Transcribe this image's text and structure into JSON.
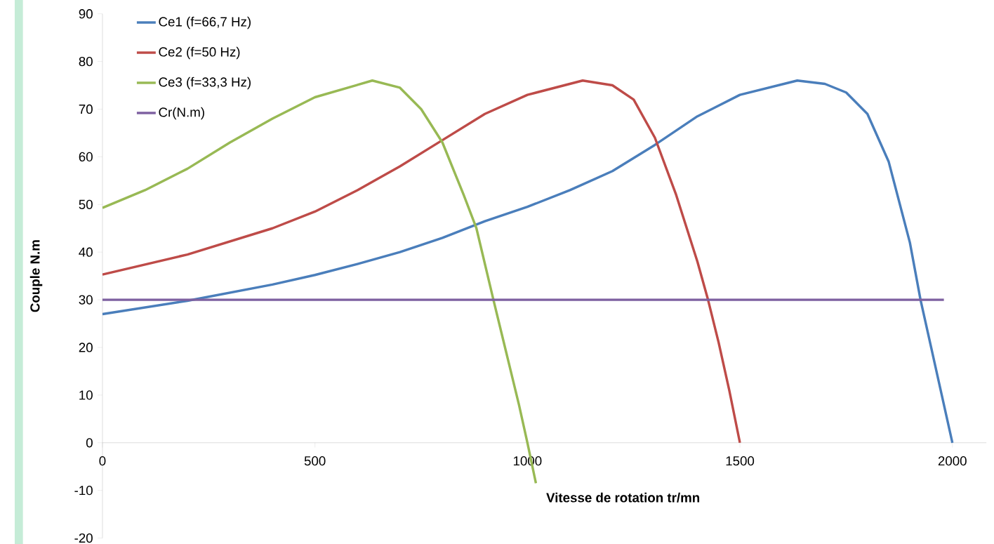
{
  "chart_data": {
    "type": "line",
    "xlabel": "Vitesse de rotation  tr/mn",
    "ylabel": "Couple N.m",
    "xlim": [
      0,
      2080
    ],
    "ylim": [
      -20,
      90
    ],
    "xticks": [
      0,
      500,
      1000,
      1500,
      2000
    ],
    "yticks": [
      -20,
      -10,
      0,
      10,
      20,
      30,
      40,
      50,
      60,
      70,
      80,
      90
    ],
    "grid": false,
    "legend": "top left",
    "marker": "none",
    "line_style": "solid",
    "series": [
      {
        "name": "Ce1 (f=66,7 Hz)",
        "color": "#4a7ebb",
        "x": [
          0,
          200,
          300,
          400,
          500,
          600,
          700,
          800,
          900,
          1000,
          1100,
          1200,
          1300,
          1400,
          1500,
          1635,
          1700,
          1750,
          1800,
          1850,
          1900,
          1925,
          1950,
          1975,
          2000
        ],
        "values": [
          27,
          29.8,
          31.5,
          33.2,
          35.2,
          37.5,
          40,
          43,
          46.5,
          49.5,
          53,
          57,
          62.5,
          68.5,
          73,
          76,
          75.3,
          73.5,
          69,
          59,
          42,
          30,
          20,
          10,
          0
        ]
      },
      {
        "name": "Ce2 (f=50 Hz)",
        "color": "#be4b48",
        "x": [
          0,
          200,
          400,
          500,
          600,
          700,
          800,
          900,
          1000,
          1130,
          1200,
          1250,
          1300,
          1350,
          1400,
          1425,
          1450,
          1475,
          1500
        ],
        "values": [
          35.3,
          39.5,
          45,
          48.5,
          53,
          58,
          63.5,
          69,
          73,
          76,
          75,
          72,
          64,
          52,
          38,
          30,
          21,
          11,
          0
        ]
      },
      {
        "name": "Ce3 (f=33,3 Hz)",
        "color": "#98b954",
        "x": [
          0,
          100,
          200,
          300,
          400,
          500,
          635,
          700,
          750,
          800,
          850,
          880,
          920,
          950,
          980,
          1000,
          1020
        ],
        "values": [
          49.3,
          53,
          57.5,
          63,
          68,
          72.5,
          76,
          74.5,
          70,
          63,
          52,
          45,
          30,
          19,
          8,
          0,
          -8.5
        ]
      },
      {
        "name": "Cr(N.m)",
        "color": "#7d60a0",
        "x": [
          0,
          1980
        ],
        "values": [
          30,
          30
        ]
      }
    ]
  }
}
